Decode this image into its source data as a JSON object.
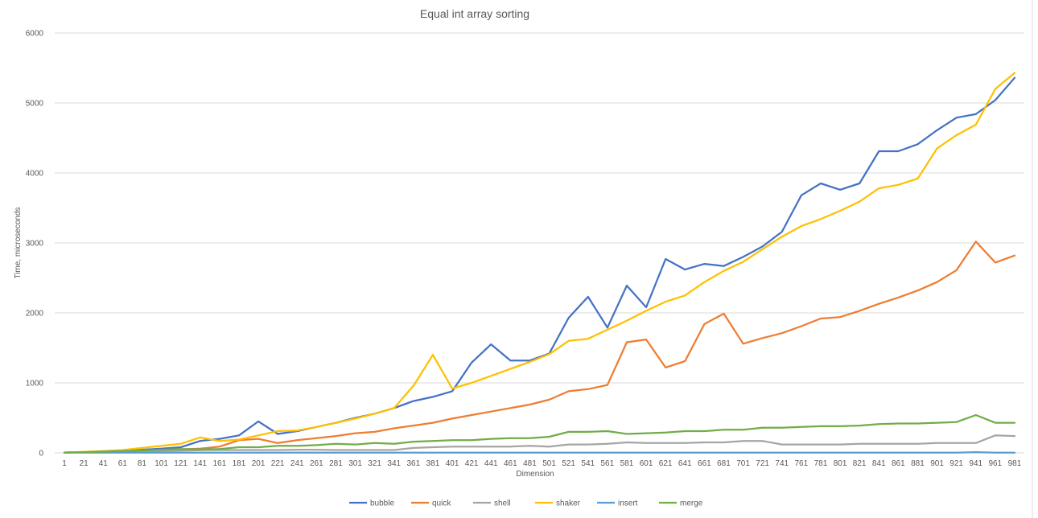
{
  "chart_data": {
    "type": "line",
    "title": "Equal int array sorting",
    "xlabel": "Dimension",
    "ylabel": "Time, microseconds",
    "ylim": [
      0,
      6000
    ],
    "yticks": [
      0,
      1000,
      2000,
      3000,
      4000,
      5000,
      6000
    ],
    "grid": true,
    "legend_position": "bottom",
    "x": [
      1,
      21,
      41,
      61,
      81,
      101,
      121,
      141,
      161,
      181,
      201,
      221,
      241,
      261,
      281,
      301,
      321,
      341,
      361,
      381,
      401,
      421,
      441,
      461,
      481,
      501,
      521,
      541,
      561,
      581,
      601,
      621,
      641,
      661,
      681,
      701,
      721,
      741,
      761,
      781,
      801,
      821,
      841,
      861,
      881,
      901,
      921,
      941,
      961,
      981
    ],
    "series": [
      {
        "name": "bubble",
        "color": "#4472c4",
        "values": [
          5,
          10,
          20,
          30,
          45,
          60,
          80,
          170,
          200,
          250,
          450,
          270,
          310,
          370,
          430,
          500,
          560,
          640,
          740,
          800,
          880,
          1290,
          1550,
          1320,
          1320,
          1420,
          1930,
          2230,
          1790,
          2390,
          2080,
          2770,
          2620,
          2700,
          2670,
          2800,
          2950,
          3160,
          3680,
          3850,
          3760,
          3850,
          4310,
          4310,
          4410,
          4610,
          4790,
          4840,
          5040,
          5360
        ]
      },
      {
        "name": "quick",
        "color": "#ed7d31",
        "values": [
          5,
          10,
          15,
          25,
          35,
          45,
          50,
          60,
          90,
          180,
          200,
          140,
          180,
          210,
          240,
          280,
          300,
          350,
          390,
          430,
          490,
          540,
          590,
          640,
          690,
          760,
          880,
          910,
          970,
          1580,
          1620,
          1220,
          1310,
          1840,
          1990,
          1560,
          1640,
          1710,
          1810,
          1920,
          1940,
          2030,
          2130,
          2220,
          2320,
          2440,
          2610,
          3020,
          2720,
          2820
        ]
      },
      {
        "name": "shell",
        "color": "#a5a5a5",
        "values": [
          5,
          8,
          12,
          18,
          22,
          28,
          32,
          38,
          40,
          40,
          40,
          40,
          45,
          45,
          40,
          40,
          40,
          40,
          70,
          80,
          90,
          90,
          90,
          90,
          100,
          90,
          120,
          120,
          130,
          150,
          140,
          140,
          140,
          150,
          150,
          170,
          170,
          120,
          120,
          120,
          120,
          130,
          130,
          130,
          130,
          140,
          140,
          140,
          250,
          240
        ]
      },
      {
        "name": "shaker",
        "color": "#ffc000",
        "values": [
          5,
          15,
          25,
          40,
          70,
          100,
          130,
          220,
          170,
          190,
          250,
          310,
          320,
          370,
          430,
          490,
          560,
          640,
          960,
          1400,
          920,
          1000,
          1100,
          1200,
          1300,
          1410,
          1600,
          1630,
          1760,
          1890,
          2030,
          2160,
          2250,
          2440,
          2600,
          2730,
          2910,
          3090,
          3240,
          3340,
          3460,
          3590,
          3780,
          3830,
          3920,
          4350,
          4540,
          4690,
          5200,
          5430
        ]
      },
      {
        "name": "insert",
        "color": "#5b9bd5",
        "values": [
          2,
          2,
          3,
          3,
          3,
          3,
          3,
          3,
          3,
          3,
          3,
          3,
          3,
          3,
          3,
          3,
          3,
          3,
          3,
          3,
          3,
          3,
          3,
          3,
          3,
          3,
          3,
          3,
          3,
          3,
          3,
          3,
          3,
          3,
          3,
          3,
          3,
          3,
          3,
          3,
          3,
          3,
          3,
          3,
          3,
          3,
          3,
          10,
          3,
          3
        ]
      },
      {
        "name": "merge",
        "color": "#70ad47",
        "values": [
          5,
          10,
          18,
          25,
          35,
          45,
          55,
          50,
          55,
          80,
          80,
          100,
          100,
          110,
          130,
          120,
          140,
          130,
          160,
          170,
          180,
          180,
          200,
          210,
          210,
          230,
          300,
          300,
          310,
          270,
          280,
          290,
          310,
          310,
          330,
          330,
          360,
          360,
          370,
          380,
          380,
          390,
          410,
          420,
          420,
          430,
          440,
          540,
          430,
          430
        ]
      }
    ]
  }
}
